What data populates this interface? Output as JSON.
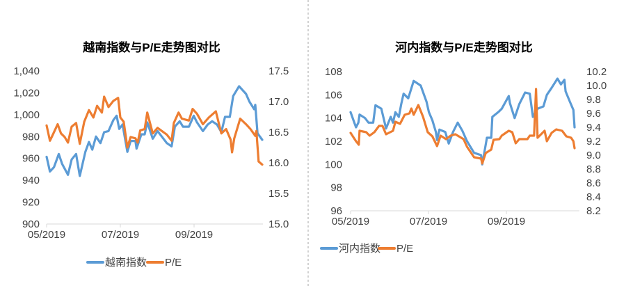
{
  "colors": {
    "index": "#5B9BD5",
    "pe": "#ED7D31",
    "axis": "#D9D9D9",
    "divider": "#A6A6A6"
  },
  "chart_data": [
    {
      "type": "line",
      "title": "越南指数与P/E走势图对比",
      "x_unit": "months since 05/2019",
      "x_ticks": [
        {
          "x": 0,
          "label": "05/2019"
        },
        {
          "x": 2,
          "label": "07/2019"
        },
        {
          "x": 4,
          "label": "09/2019"
        }
      ],
      "y_left": {
        "range": [
          900,
          1040
        ],
        "ticks": [
          "900",
          "920",
          "940",
          "960",
          "980",
          "1,000",
          "1,020",
          "1,040"
        ],
        "tick_values": [
          900,
          920,
          940,
          960,
          980,
          1000,
          1020,
          1040
        ]
      },
      "y_right": {
        "range": [
          15.0,
          17.5
        ],
        "ticks": [
          "15.0",
          "15.5",
          "16.0",
          "16.5",
          "17.0",
          "17.5"
        ],
        "tick_values": [
          15.0,
          15.5,
          16.0,
          16.5,
          17.0,
          17.5
        ]
      },
      "legend_position": "bottom",
      "series": [
        {
          "name": "越南指数",
          "axis": "left",
          "points": [
            [
              0,
              961.5
            ],
            [
              0.09,
              948
            ],
            [
              0.2,
              952
            ],
            [
              0.33,
              964
            ],
            [
              0.42,
              955
            ],
            [
              0.58,
              945
            ],
            [
              0.68,
              959
            ],
            [
              0.8,
              964
            ],
            [
              0.9,
              944
            ],
            [
              1.05,
              966
            ],
            [
              1.15,
              975
            ],
            [
              1.24,
              968
            ],
            [
              1.34,
              980
            ],
            [
              1.46,
              974
            ],
            [
              1.56,
              984
            ],
            [
              1.68,
              985
            ],
            [
              1.81,
              995
            ],
            [
              1.9,
              999
            ],
            [
              1.97,
              987
            ],
            [
              2.06,
              991
            ],
            [
              2.19,
              966
            ],
            [
              2.28,
              976
            ],
            [
              2.41,
              976
            ],
            [
              2.44,
              969
            ],
            [
              2.57,
              982
            ],
            [
              2.66,
              982
            ],
            [
              2.73,
              993
            ],
            [
              2.88,
              978
            ],
            [
              3.01,
              985
            ],
            [
              3.26,
              974
            ],
            [
              3.39,
              971
            ],
            [
              3.48,
              989
            ],
            [
              3.61,
              994
            ],
            [
              3.7,
              989
            ],
            [
              3.86,
              989
            ],
            [
              3.99,
              999
            ],
            [
              4.08,
              993
            ],
            [
              4.24,
              985
            ],
            [
              4.37,
              991
            ],
            [
              4.49,
              994
            ],
            [
              4.62,
              991
            ],
            [
              4.74,
              984
            ],
            [
              4.84,
              998
            ],
            [
              4.97,
              998
            ],
            [
              5.06,
              1017
            ],
            [
              5.22,
              1026
            ],
            [
              5.41,
              1019
            ],
            [
              5.5,
              1012
            ],
            [
              5.63,
              1005
            ],
            [
              5.66,
              1009
            ],
            [
              5.72,
              983
            ],
            [
              5.85,
              977
            ]
          ]
        },
        {
          "name": "P/E",
          "axis": "right",
          "points": [
            [
              0,
              16.61
            ],
            [
              0.09,
              16.36
            ],
            [
              0.17,
              16.46
            ],
            [
              0.3,
              16.63
            ],
            [
              0.39,
              16.48
            ],
            [
              0.49,
              16.42
            ],
            [
              0.58,
              16.33
            ],
            [
              0.68,
              16.59
            ],
            [
              0.8,
              16.65
            ],
            [
              0.9,
              16.31
            ],
            [
              1.02,
              16.67
            ],
            [
              1.15,
              16.86
            ],
            [
              1.27,
              16.74
            ],
            [
              1.37,
              16.93
            ],
            [
              1.5,
              16.82
            ],
            [
              1.56,
              17.08
            ],
            [
              1.68,
              16.91
            ],
            [
              1.81,
              17.01
            ],
            [
              1.94,
              17.06
            ],
            [
              2.0,
              16.74
            ],
            [
              2.09,
              16.67
            ],
            [
              2.19,
              16.25
            ],
            [
              2.28,
              16.42
            ],
            [
              2.41,
              16.4
            ],
            [
              2.47,
              16.33
            ],
            [
              2.54,
              16.53
            ],
            [
              2.66,
              16.55
            ],
            [
              2.73,
              16.82
            ],
            [
              2.88,
              16.48
            ],
            [
              3.01,
              16.57
            ],
            [
              3.26,
              16.46
            ],
            [
              3.39,
              16.36
            ],
            [
              3.45,
              16.65
            ],
            [
              3.58,
              16.82
            ],
            [
              3.67,
              16.72
            ],
            [
              3.86,
              16.69
            ],
            [
              3.96,
              16.88
            ],
            [
              4.08,
              16.8
            ],
            [
              4.24,
              16.63
            ],
            [
              4.4,
              16.74
            ],
            [
              4.59,
              16.84
            ],
            [
              4.74,
              16.48
            ],
            [
              4.87,
              16.55
            ],
            [
              4.99,
              16.38
            ],
            [
              5.03,
              16.17
            ],
            [
              5.09,
              16.4
            ],
            [
              5.25,
              16.72
            ],
            [
              5.41,
              16.63
            ],
            [
              5.53,
              16.55
            ],
            [
              5.66,
              16.44
            ],
            [
              5.69,
              16.52
            ],
            [
              5.75,
              16.02
            ],
            [
              5.85,
              15.97
            ]
          ]
        }
      ]
    },
    {
      "type": "line",
      "title": "河内指数与P/E走势图对比",
      "x_unit": "months since 05/2019",
      "x_ticks": [
        {
          "x": 0,
          "label": "05/2019"
        },
        {
          "x": 2,
          "label": "07/2019"
        },
        {
          "x": 4,
          "label": "09/2019"
        }
      ],
      "y_left": {
        "range": [
          96,
          108
        ],
        "ticks": [
          "96",
          "98",
          "100",
          "102",
          "104",
          "106",
          "108"
        ],
        "tick_values": [
          96,
          98,
          100,
          102,
          104,
          106,
          108
        ]
      },
      "y_right": {
        "range": [
          8.2,
          10.2
        ],
        "ticks": [
          "8.2",
          "8.4",
          "8.6",
          "8.8",
          "9.0",
          "9.2",
          "9.4",
          "9.6",
          "9.8",
          "10.0",
          "10.2"
        ],
        "tick_values": [
          8.2,
          8.4,
          8.6,
          8.8,
          9.0,
          9.2,
          9.4,
          9.6,
          9.8,
          10.0,
          10.2
        ]
      },
      "legend_position": "bottom",
      "series": [
        {
          "name": "河内指数",
          "axis": "left",
          "points": [
            [
              0,
              104.5
            ],
            [
              0.14,
              103.2
            ],
            [
              0.2,
              103.6
            ],
            [
              0.23,
              104.3
            ],
            [
              0.37,
              104
            ],
            [
              0.46,
              103.6
            ],
            [
              0.58,
              103.6
            ],
            [
              0.64,
              105.1
            ],
            [
              0.79,
              104.8
            ],
            [
              0.91,
              103.1
            ],
            [
              1.03,
              104.1
            ],
            [
              1.09,
              103.6
            ],
            [
              1.15,
              104.5
            ],
            [
              1.24,
              104.1
            ],
            [
              1.3,
              105.2
            ],
            [
              1.36,
              106.1
            ],
            [
              1.48,
              105.7
            ],
            [
              1.62,
              107.2
            ],
            [
              1.8,
              106.8
            ],
            [
              1.95,
              105.4
            ],
            [
              2.01,
              104.5
            ],
            [
              2.1,
              103.8
            ],
            [
              2.19,
              102.8
            ],
            [
              2.22,
              102.1
            ],
            [
              2.28,
              103
            ],
            [
              2.43,
              102.8
            ],
            [
              2.52,
              101.8
            ],
            [
              2.63,
              102.8
            ],
            [
              2.75,
              103.6
            ],
            [
              2.87,
              102.9
            ],
            [
              2.99,
              102
            ],
            [
              3.17,
              101
            ],
            [
              3.35,
              100.8
            ],
            [
              3.38,
              100
            ],
            [
              3.5,
              102.3
            ],
            [
              3.61,
              102.3
            ],
            [
              3.64,
              104.1
            ],
            [
              3.79,
              104.5
            ],
            [
              3.88,
              104.8
            ],
            [
              4.06,
              105.9
            ],
            [
              4.09,
              105.3
            ],
            [
              4.21,
              104
            ],
            [
              4.33,
              105.2
            ],
            [
              4.48,
              106.2
            ],
            [
              4.6,
              106.1
            ],
            [
              4.68,
              104.1
            ],
            [
              4.8,
              104.8
            ],
            [
              4.95,
              105
            ],
            [
              5.04,
              106
            ],
            [
              5.16,
              106.6
            ],
            [
              5.31,
              107.4
            ],
            [
              5.4,
              106.9
            ],
            [
              5.49,
              107.3
            ],
            [
              5.52,
              106.3
            ],
            [
              5.63,
              105.4
            ],
            [
              5.72,
              104.7
            ],
            [
              5.75,
              103.2
            ]
          ]
        },
        {
          "name": "P/E",
          "axis": "right",
          "points": [
            [
              0,
              9.32
            ],
            [
              0.14,
              9.2
            ],
            [
              0.21,
              9.15
            ],
            [
              0.23,
              9.35
            ],
            [
              0.4,
              9.33
            ],
            [
              0.49,
              9.28
            ],
            [
              0.61,
              9.33
            ],
            [
              0.73,
              9.42
            ],
            [
              0.82,
              9.42
            ],
            [
              0.91,
              9.3
            ],
            [
              1.09,
              9.35
            ],
            [
              1.15,
              9.48
            ],
            [
              1.27,
              9.45
            ],
            [
              1.39,
              9.58
            ],
            [
              1.51,
              9.6
            ],
            [
              1.56,
              9.67
            ],
            [
              1.62,
              9.58
            ],
            [
              1.74,
              9.72
            ],
            [
              1.86,
              9.55
            ],
            [
              1.98,
              9.33
            ],
            [
              2.1,
              9.27
            ],
            [
              2.22,
              9.13
            ],
            [
              2.31,
              9.28
            ],
            [
              2.45,
              9.23
            ],
            [
              2.57,
              9.28
            ],
            [
              2.69,
              9.3
            ],
            [
              2.9,
              9.23
            ],
            [
              2.99,
              9.12
            ],
            [
              3.17,
              8.97
            ],
            [
              3.35,
              8.95
            ],
            [
              3.38,
              8.88
            ],
            [
              3.47,
              9.03
            ],
            [
              3.61,
              9.08
            ],
            [
              3.67,
              9.22
            ],
            [
              3.82,
              9.23
            ],
            [
              3.88,
              9.28
            ],
            [
              4.06,
              9.35
            ],
            [
              4.15,
              9.33
            ],
            [
              4.24,
              9.17
            ],
            [
              4.33,
              9.23
            ],
            [
              4.54,
              9.23
            ],
            [
              4.6,
              9.28
            ],
            [
              4.71,
              9.28
            ],
            [
              4.76,
              9.95
            ],
            [
              4.8,
              9.25
            ],
            [
              4.98,
              9.35
            ],
            [
              5.04,
              9.2
            ],
            [
              5.16,
              9.32
            ],
            [
              5.28,
              9.37
            ],
            [
              5.43,
              9.35
            ],
            [
              5.54,
              9.27
            ],
            [
              5.66,
              9.25
            ],
            [
              5.72,
              9.2
            ],
            [
              5.75,
              9.1
            ]
          ]
        }
      ]
    }
  ]
}
